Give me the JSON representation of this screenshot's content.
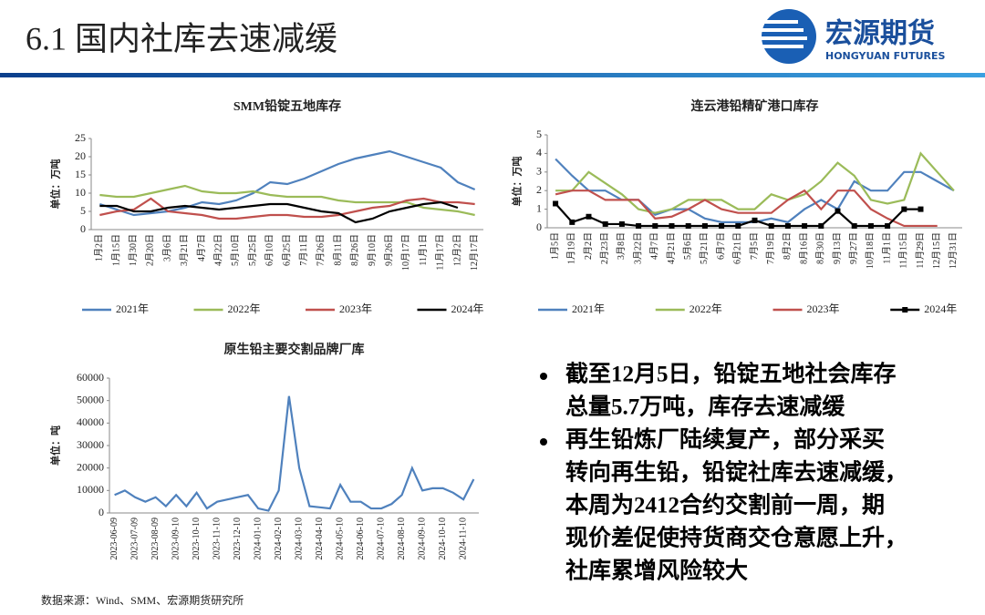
{
  "header": {
    "title": "6.1 国内社库去速减缓",
    "logo_cn": "宏源期货",
    "logo_en": "HONGYUAN FUTURES"
  },
  "chart_data": [
    {
      "type": "line",
      "title": "SMM铅锭五地库存",
      "ylabel": "单位：万吨",
      "categories": [
        "1月2日",
        "1月15日",
        "1月30日",
        "2月20日",
        "3月6日",
        "3月21日",
        "4月7日",
        "4月22日",
        "5月10日",
        "5月25日",
        "6月10日",
        "6月25日",
        "7月11日",
        "7月26日",
        "8月11日",
        "8月26日",
        "9月10日",
        "9月26日",
        "10月17日",
        "11月1日",
        "11月17日",
        "12月2日",
        "12月17日"
      ],
      "ylim": [
        0,
        25
      ],
      "yticks": [
        0,
        5,
        10,
        15,
        20,
        25
      ],
      "series": [
        {
          "name": "2021年",
          "color": "#4f81bd",
          "values": [
            7,
            5.5,
            4,
            4.5,
            5,
            6,
            7.5,
            7,
            8,
            10,
            13,
            12.5,
            14,
            16,
            18,
            19.5,
            20.5,
            21.5,
            20,
            18.5,
            17,
            13,
            11
          ]
        },
        {
          "name": "2022年",
          "color": "#9bbb59",
          "values": [
            9.5,
            9,
            9,
            10,
            11,
            12,
            10.5,
            10,
            10,
            10.5,
            9.5,
            9,
            9,
            9,
            8,
            7.5,
            7.5,
            7.5,
            7.5,
            6,
            5.5,
            5,
            4
          ]
        },
        {
          "name": "2023年",
          "color": "#c0504d",
          "values": [
            4,
            5,
            5.5,
            8.5,
            5,
            4.5,
            4,
            3,
            3,
            3.5,
            4,
            4,
            3.5,
            3.5,
            4,
            5,
            6,
            6.5,
            8,
            8.5,
            7.5,
            7.5,
            7
          ]
        },
        {
          "name": "2024年",
          "color": "#000000",
          "values": [
            6.5,
            6.5,
            5,
            5,
            6,
            6.5,
            6,
            5.5,
            6,
            6.5,
            7,
            7,
            6,
            5,
            4.5,
            2,
            3,
            5,
            6,
            7,
            7.5,
            6,
            null
          ]
        }
      ]
    },
    {
      "type": "line",
      "title": "连云港铅精矿港口库存",
      "ylabel": "单位：万吨",
      "categories": [
        "1月5日",
        "1月19日",
        "2月2日",
        "2月23日",
        "3月8日",
        "3月22日",
        "4月7日",
        "4月21日",
        "5月6日",
        "5月21日",
        "6月7日",
        "6月21日",
        "7月5日",
        "7月19日",
        "8月2日",
        "8月16日",
        "8月30日",
        "9月13日",
        "9月27日",
        "10月18日",
        "11月1日",
        "11月15日",
        "11月29日",
        "12月15日",
        "12月31日"
      ],
      "ylim": [
        0,
        5
      ],
      "yticks": [
        0,
        1,
        2,
        3,
        4,
        5
      ],
      "series": [
        {
          "name": "2021年",
          "color": "#4f81bd",
          "values": [
            3.7,
            2.8,
            2,
            2,
            1.5,
            1.5,
            0.7,
            1,
            1,
            0.5,
            0.3,
            0.3,
            0.3,
            0.5,
            0.3,
            1,
            1.5,
            1,
            2.5,
            2,
            2,
            3,
            3,
            2.5,
            2
          ]
        },
        {
          "name": "2022年",
          "color": "#9bbb59",
          "values": [
            2,
            2,
            3,
            2.4,
            1.8,
            1,
            0.8,
            1,
            1.5,
            1.5,
            1.5,
            1,
            1,
            1.8,
            1.5,
            1.8,
            2.5,
            3.5,
            2.8,
            1.5,
            1.3,
            1.5,
            4,
            3,
            2
          ]
        },
        {
          "name": "2023年",
          "color": "#c0504d",
          "values": [
            1.8,
            2,
            2,
            1.5,
            1.5,
            1.5,
            0.5,
            0.6,
            1,
            1.5,
            1,
            0.8,
            0.8,
            0.8,
            1.5,
            2,
            1,
            2,
            2,
            1,
            0.5,
            0.1,
            0.1,
            0.1,
            null
          ]
        },
        {
          "name": "2024年",
          "color": "#000000",
          "marker": "square",
          "values": [
            1.3,
            0.3,
            0.6,
            0.2,
            0.2,
            0.1,
            0.1,
            0.1,
            0.1,
            0.1,
            0.1,
            0.1,
            0.4,
            0.1,
            0.1,
            0.1,
            0.1,
            0.9,
            0.1,
            0.1,
            0.1,
            1,
            1,
            null,
            null
          ]
        }
      ]
    },
    {
      "type": "line",
      "title": "原生铅主要交割品牌厂库",
      "ylabel": "单位：吨",
      "categories": [
        "2023-06-09",
        null,
        "2023-07-09",
        null,
        "2023-08-09",
        null,
        "2023-09-10",
        null,
        "2023-10-10",
        null,
        "2023-11-10",
        null,
        "2023-12-10",
        null,
        "2024-01-10",
        null,
        "2024-02-10",
        null,
        "2024-03-10",
        null,
        "2024-04-10",
        null,
        "2024-05-10",
        null,
        "2024-06-10",
        null,
        "2024-07-10",
        null,
        "2024-08-10",
        null,
        "2024-09-10",
        null,
        "2024-10-10",
        null,
        "2024-11-10",
        null
      ],
      "ylim": [
        0,
        60000
      ],
      "yticks": [
        0,
        10000,
        20000,
        30000,
        40000,
        50000,
        60000
      ],
      "series": [
        {
          "color": "#4f81bd",
          "values": [
            8000,
            10000,
            7000,
            5000,
            7000,
            3000,
            8000,
            3000,
            9000,
            2000,
            5000,
            6000,
            7000,
            8000,
            2000,
            1000,
            10000,
            52000,
            20000,
            3000,
            2500,
            2000,
            12500,
            5000,
            5000,
            2000,
            2000,
            4000,
            8000,
            20000,
            10000,
            11000,
            11000,
            9000,
            6000,
            15000
          ]
        }
      ]
    }
  ],
  "bullets": [
    [
      "截至12月5日，铅锭五地社会库存",
      "总量5.7万吨，库存去速减缓"
    ],
    [
      "再生铅炼厂陆续复产，部分采买",
      "转向再生铅，铅锭社库去速减缓，",
      "本周为2412合约交割前一周，期",
      "现价差促使持货商交仓意愿上升，",
      "社库累增风险较大"
    ]
  ],
  "source": "数据来源：Wind、SMM、宏源期货研究所"
}
